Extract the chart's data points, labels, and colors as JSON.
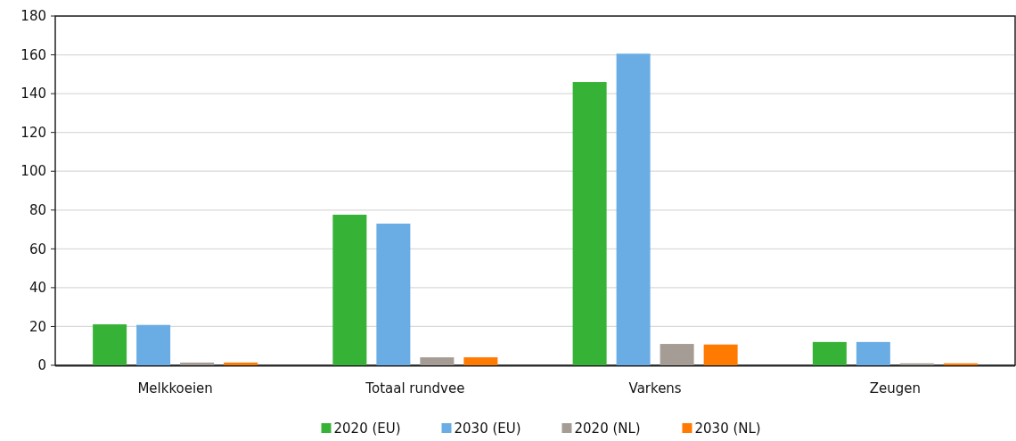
{
  "chart_data": {
    "type": "bar",
    "categories": [
      "Melkkoeien",
      "Totaal rundvee",
      "Varkens",
      "Zeugen"
    ],
    "series": [
      {
        "name": "2020 (EU)",
        "color": "#36b336",
        "values": [
          21.1,
          77.6,
          146,
          12
        ]
      },
      {
        "name": "2030 (EU)",
        "color": "#6aade4",
        "values": [
          20.8,
          73,
          160.6,
          12
        ]
      },
      {
        "name": "2020 (NL)",
        "color": "#a59d95",
        "values": [
          1.4,
          4.1,
          11,
          1
        ]
      },
      {
        "name": "2030 (NL)",
        "color": "#ff7a00",
        "values": [
          1.4,
          4.1,
          10.7,
          1
        ]
      }
    ],
    "ylim": [
      0,
      180
    ],
    "yticks": [
      0,
      20,
      40,
      60,
      80,
      100,
      120,
      140,
      160,
      180
    ],
    "grid": "y",
    "legend": "bottom"
  }
}
